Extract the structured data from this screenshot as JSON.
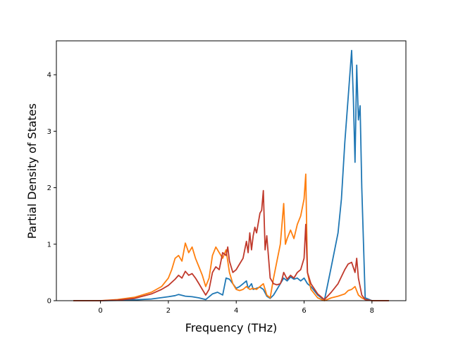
{
  "chart_data": {
    "type": "line",
    "xlabel": "Frequency (THz)",
    "ylabel": "Partial Density of States",
    "xlim": [
      -1.3,
      9.0
    ],
    "ylim": [
      0,
      4.6
    ],
    "xticks": [
      0,
      2,
      4,
      6,
      8
    ],
    "yticks": [
      0,
      1,
      2,
      3,
      4
    ],
    "grid": false,
    "series": [
      {
        "color": "#1f77b4",
        "x": [
          -0.8,
          0,
          0.5,
          1,
          1.5,
          2,
          2.2,
          2.3,
          2.5,
          2.7,
          2.9,
          3.1,
          3.3,
          3.45,
          3.6,
          3.7,
          3.8,
          3.9,
          4.0,
          4.1,
          4.2,
          4.3,
          4.35,
          4.45,
          4.5,
          4.6,
          4.7,
          4.8,
          4.9,
          5.0,
          5.1,
          5.2,
          5.3,
          5.4,
          5.5,
          5.6,
          5.7,
          5.8,
          5.9,
          6.0,
          6.1,
          6.2,
          6.4,
          6.6,
          6.7,
          6.8,
          6.9,
          7.0,
          7.1,
          7.2,
          7.3,
          7.4,
          7.45,
          7.5,
          7.55,
          7.6,
          7.65,
          7.7,
          7.8,
          8.0,
          8.5
        ],
        "y": [
          0,
          0,
          0.005,
          0.015,
          0.03,
          0.07,
          0.09,
          0.11,
          0.08,
          0.07,
          0.05,
          0.02,
          0.12,
          0.15,
          0.1,
          0.4,
          0.38,
          0.3,
          0.22,
          0.25,
          0.3,
          0.35,
          0.22,
          0.3,
          0.2,
          0.22,
          0.24,
          0.2,
          0.08,
          0.04,
          0.1,
          0.2,
          0.3,
          0.4,
          0.35,
          0.42,
          0.38,
          0.4,
          0.35,
          0.4,
          0.3,
          0.25,
          0.1,
          0.01,
          0.3,
          0.6,
          0.9,
          1.2,
          1.8,
          2.8,
          3.6,
          4.43,
          3.6,
          2.45,
          4.17,
          3.2,
          3.45,
          2.0,
          0.05,
          0,
          0
        ]
      },
      {
        "color": "#ff7f0e",
        "x": [
          -0.8,
          0,
          0.5,
          1,
          1.5,
          1.8,
          2.0,
          2.1,
          2.2,
          2.3,
          2.4,
          2.5,
          2.6,
          2.7,
          2.8,
          2.9,
          3.0,
          3.1,
          3.2,
          3.3,
          3.4,
          3.5,
          3.6,
          3.7,
          3.8,
          3.9,
          4.0,
          4.1,
          4.2,
          4.3,
          4.4,
          4.5,
          4.6,
          4.7,
          4.8,
          4.9,
          5.0,
          5.1,
          5.2,
          5.3,
          5.4,
          5.45,
          5.5,
          5.6,
          5.7,
          5.8,
          5.9,
          6.0,
          6.05,
          6.1,
          6.2,
          6.4,
          6.6,
          6.8,
          7.0,
          7.2,
          7.3,
          7.4,
          7.5,
          7.6,
          7.7,
          7.8,
          8.0,
          8.5
        ],
        "y": [
          0,
          0,
          0.02,
          0.06,
          0.15,
          0.25,
          0.4,
          0.55,
          0.75,
          0.8,
          0.7,
          1.02,
          0.85,
          0.95,
          0.75,
          0.6,
          0.45,
          0.25,
          0.4,
          0.8,
          0.95,
          0.85,
          0.75,
          0.9,
          0.5,
          0.3,
          0.2,
          0.18,
          0.2,
          0.25,
          0.2,
          0.22,
          0.2,
          0.25,
          0.3,
          0.1,
          0.05,
          0.4,
          0.7,
          1.0,
          1.72,
          1.0,
          1.1,
          1.25,
          1.1,
          1.35,
          1.5,
          1.8,
          2.24,
          0.5,
          0.2,
          0.05,
          0,
          0.05,
          0.08,
          0.12,
          0.18,
          0.2,
          0.25,
          0.1,
          0.05,
          0.02,
          0,
          0
        ]
      },
      {
        "color": "#c0392b",
        "x": [
          -0.8,
          0,
          0.5,
          1,
          1.5,
          1.8,
          2.0,
          2.2,
          2.3,
          2.4,
          2.5,
          2.6,
          2.7,
          2.8,
          2.9,
          3.0,
          3.1,
          3.2,
          3.3,
          3.4,
          3.5,
          3.6,
          3.7,
          3.75,
          3.8,
          3.9,
          4.0,
          4.1,
          4.2,
          4.3,
          4.35,
          4.4,
          4.45,
          4.5,
          4.55,
          4.6,
          4.7,
          4.75,
          4.8,
          4.85,
          4.9,
          5.0,
          5.1,
          5.2,
          5.3,
          5.35,
          5.4,
          5.5,
          5.6,
          5.7,
          5.8,
          5.9,
          6.0,
          6.05,
          6.1,
          6.2,
          6.4,
          6.6,
          6.8,
          7.0,
          7.2,
          7.3,
          7.4,
          7.5,
          7.55,
          7.6,
          7.7,
          7.8,
          8.0,
          8.5
        ],
        "y": [
          0,
          0,
          0.01,
          0.04,
          0.12,
          0.2,
          0.27,
          0.38,
          0.45,
          0.4,
          0.52,
          0.45,
          0.48,
          0.4,
          0.3,
          0.2,
          0.1,
          0.2,
          0.5,
          0.6,
          0.55,
          0.85,
          0.8,
          0.95,
          0.7,
          0.5,
          0.55,
          0.65,
          0.75,
          1.05,
          0.85,
          1.2,
          0.9,
          1.15,
          1.3,
          1.2,
          1.55,
          1.6,
          1.95,
          0.9,
          1.15,
          0.4,
          0.3,
          0.28,
          0.3,
          0.38,
          0.5,
          0.38,
          0.45,
          0.4,
          0.5,
          0.55,
          0.75,
          1.35,
          0.5,
          0.3,
          0.12,
          0.02,
          0.15,
          0.3,
          0.55,
          0.65,
          0.68,
          0.5,
          0.75,
          0.4,
          0.1,
          0.02,
          0,
          0
        ]
      }
    ]
  }
}
